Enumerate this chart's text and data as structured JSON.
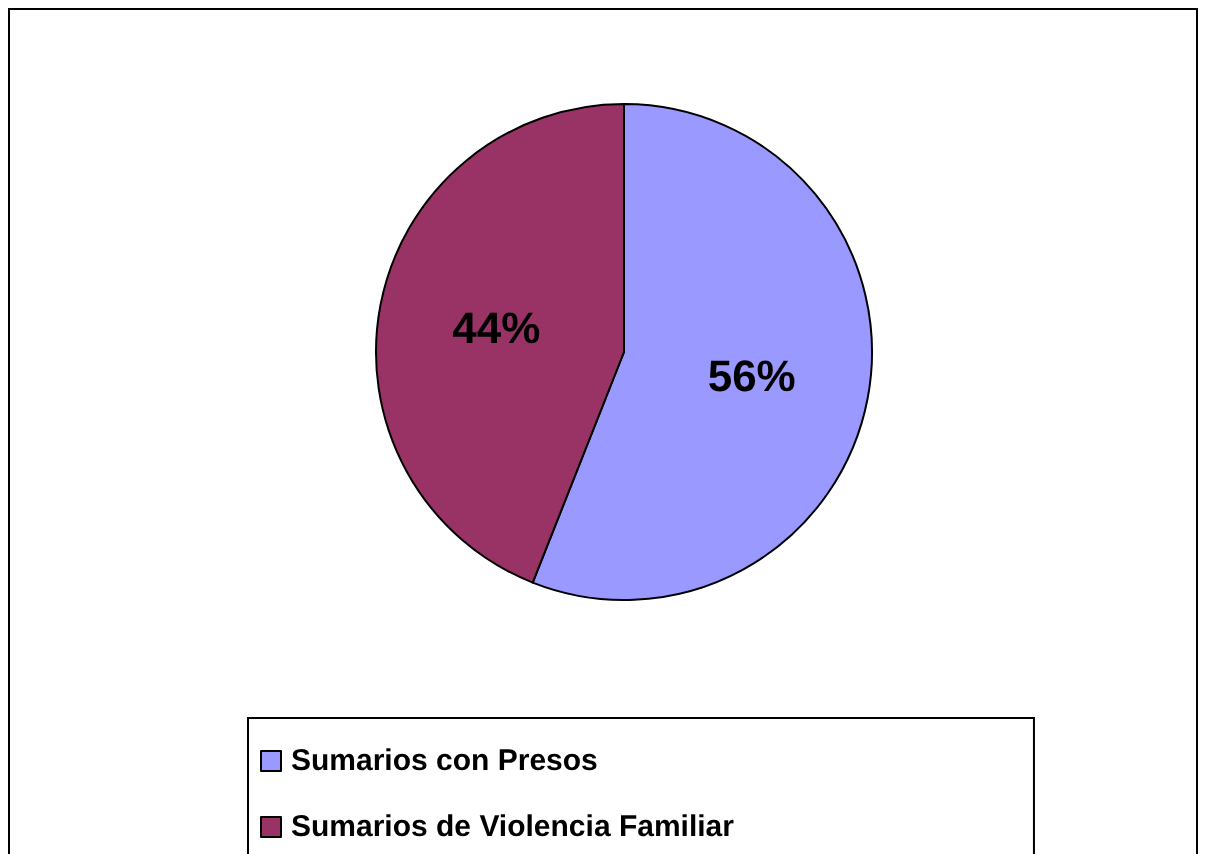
{
  "chart_data": {
    "type": "pie",
    "categories": [
      "Sumarios con Presos",
      "Sumarios de Violencia Familiar"
    ],
    "values": [
      56,
      44
    ],
    "colors": [
      "#9999ff",
      "#993366"
    ],
    "value_labels": [
      "56%",
      "44%"
    ],
    "legend": "bottom"
  }
}
